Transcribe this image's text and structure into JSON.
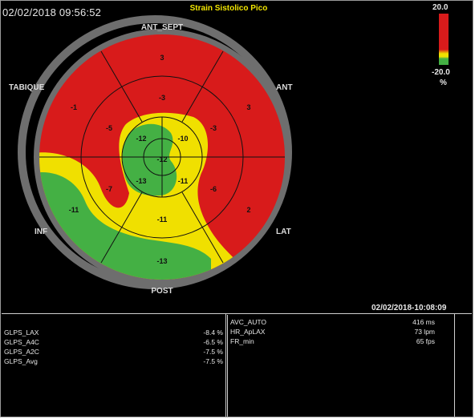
{
  "header": {
    "timestamp": "02/02/2018 09:56:52",
    "title": "Strain Sistolico Pico"
  },
  "scale": {
    "max": "20.0",
    "min": "-20.0",
    "unit": "%"
  },
  "walls": {
    "anterior_septal": "ANT_SEPT",
    "septum": "TABIQUE",
    "anterior": "ANT",
    "inferior": "INF",
    "lateral": "LAT",
    "posterior": "POST"
  },
  "segments": {
    "basal": [
      "3",
      "3",
      "2",
      "-13",
      "-11",
      "-1"
    ],
    "mid": [
      "-3",
      "-3",
      "-6",
      "-11",
      "-7",
      "-5"
    ],
    "apical": [
      "-10",
      "-11",
      "-13",
      "-12"
    ],
    "apex": "-12"
  },
  "footer_timestamp": "02/02/2018-10:08:09",
  "gls_panel": [
    {
      "label": "GLPS_LAX",
      "value": "-8.4 %"
    },
    {
      "label": "GLPS_A4C",
      "value": "-6.5 %"
    },
    {
      "label": "GLPS_A2C",
      "value": "-7.5 %"
    },
    {
      "label": "GLPS_Avg",
      "value": "-7.5 %"
    }
  ],
  "info_panel": [
    {
      "label": "AVC_AUTO",
      "value": "416 ms"
    },
    {
      "label": "HR_ApLAX",
      "value": "73 lpm"
    },
    {
      "label": "FR_min",
      "value": "65 fps"
    }
  ],
  "colors": {
    "red": "#d81b1b",
    "yellow": "#f0e000",
    "green": "#44b044",
    "ring": "#6e6e6e"
  }
}
